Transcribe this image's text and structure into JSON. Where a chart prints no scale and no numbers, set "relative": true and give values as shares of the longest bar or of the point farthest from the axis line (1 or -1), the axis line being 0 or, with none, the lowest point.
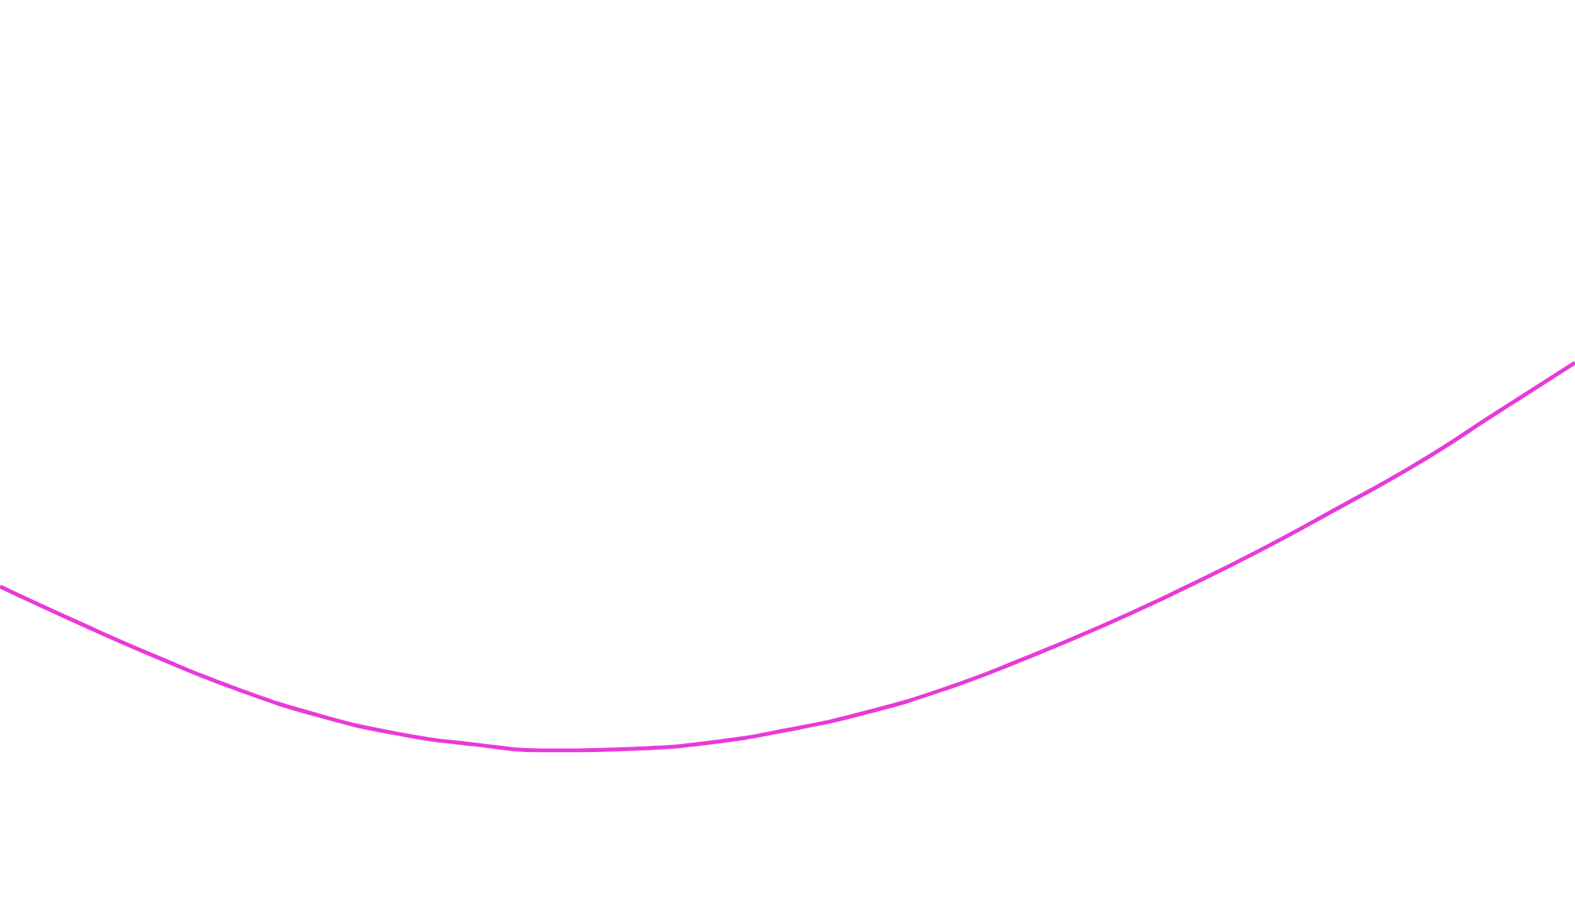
{
  "chart_data": {
    "type": "line",
    "relative": true,
    "marker": "none",
    "color": "#e83ad8",
    "categories": [
      null,
      null,
      null,
      null,
      null,
      null,
      null,
      null,
      null,
      null,
      null,
      null,
      null,
      null,
      null,
      null,
      null,
      null,
      null,
      null,
      null
    ],
    "values": [
      0.423,
      0.329,
      0.24,
      0.159,
      0.093,
      0.045,
      0.016,
      0,
      0.004,
      0.02,
      0.053,
      0.098,
      0.159,
      0.236,
      0.321,
      0.415,
      0.516,
      0.626,
      0.74,
      0.87,
      1
    ]
  }
}
